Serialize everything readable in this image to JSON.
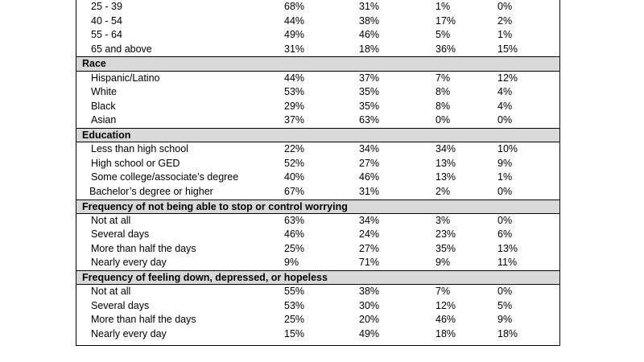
{
  "table": {
    "sections": [
      {
        "title": null,
        "rows": [
          {
            "label": "25 - 39",
            "values": [
              "68%",
              "31%",
              "1%",
              "0%"
            ]
          },
          {
            "label": "40 - 54",
            "values": [
              "44%",
              "38%",
              "17%",
              "2%"
            ]
          },
          {
            "label": "55 - 64",
            "values": [
              "49%",
              "46%",
              "5%",
              "1%"
            ]
          },
          {
            "label": "65 and above",
            "values": [
              "31%",
              "18%",
              "36%",
              "15%"
            ]
          }
        ]
      },
      {
        "title": "Race",
        "rows": [
          {
            "label": "Hispanic/Latino",
            "values": [
              "44%",
              "37%",
              "7%",
              "12%"
            ]
          },
          {
            "label": "White",
            "values": [
              "53%",
              "35%",
              "8%",
              "4%"
            ]
          },
          {
            "label": "Black",
            "values": [
              "29%",
              "35%",
              "8%",
              "4%"
            ]
          },
          {
            "label": "Asian",
            "values": [
              "37%",
              "63%",
              "0%",
              "0%"
            ]
          }
        ]
      },
      {
        "title": "Education",
        "rows": [
          {
            "label": "Less than high school",
            "values": [
              "22%",
              "34%",
              "34%",
              "10%"
            ]
          },
          {
            "label": "High school or GED",
            "values": [
              "52%",
              "27%",
              "13%",
              "9%"
            ]
          },
          {
            "label": "Some college/associate’s degree",
            "values": [
              "40%",
              "46%",
              "13%",
              "1%"
            ]
          },
          {
            "label": "Bachelor’s degree or higher",
            "values": [
              "67%",
              "31%",
              "2%",
              "0%"
            ]
          }
        ]
      },
      {
        "title": "Frequency of not being able to stop or control worrying",
        "rows": [
          {
            "label": "Not at all",
            "values": [
              "63%",
              "34%",
              "3%",
              "0%"
            ]
          },
          {
            "label": "Several days",
            "values": [
              "46%",
              "24%",
              "23%",
              "6%"
            ]
          },
          {
            "label": "More than half the days",
            "values": [
              "25%",
              "27%",
              "35%",
              "13%"
            ]
          },
          {
            "label": "Nearly every day",
            "values": [
              "9%",
              "71%",
              "9%",
              "11%"
            ]
          }
        ]
      },
      {
        "title": "Frequency of feeling down, depressed, or hopeless",
        "rows": [
          {
            "label": "Not at all",
            "values": [
              "55%",
              "38%",
              "7%",
              "0%"
            ]
          },
          {
            "label": "Several days",
            "values": [
              "53%",
              "30%",
              "12%",
              "5%"
            ]
          },
          {
            "label": "More than half the days",
            "values": [
              "25%",
              "20%",
              "46%",
              "9%"
            ]
          },
          {
            "label": "Nearly every day",
            "values": [
              "15%",
              "49%",
              "18%",
              "18%"
            ]
          }
        ]
      }
    ]
  }
}
